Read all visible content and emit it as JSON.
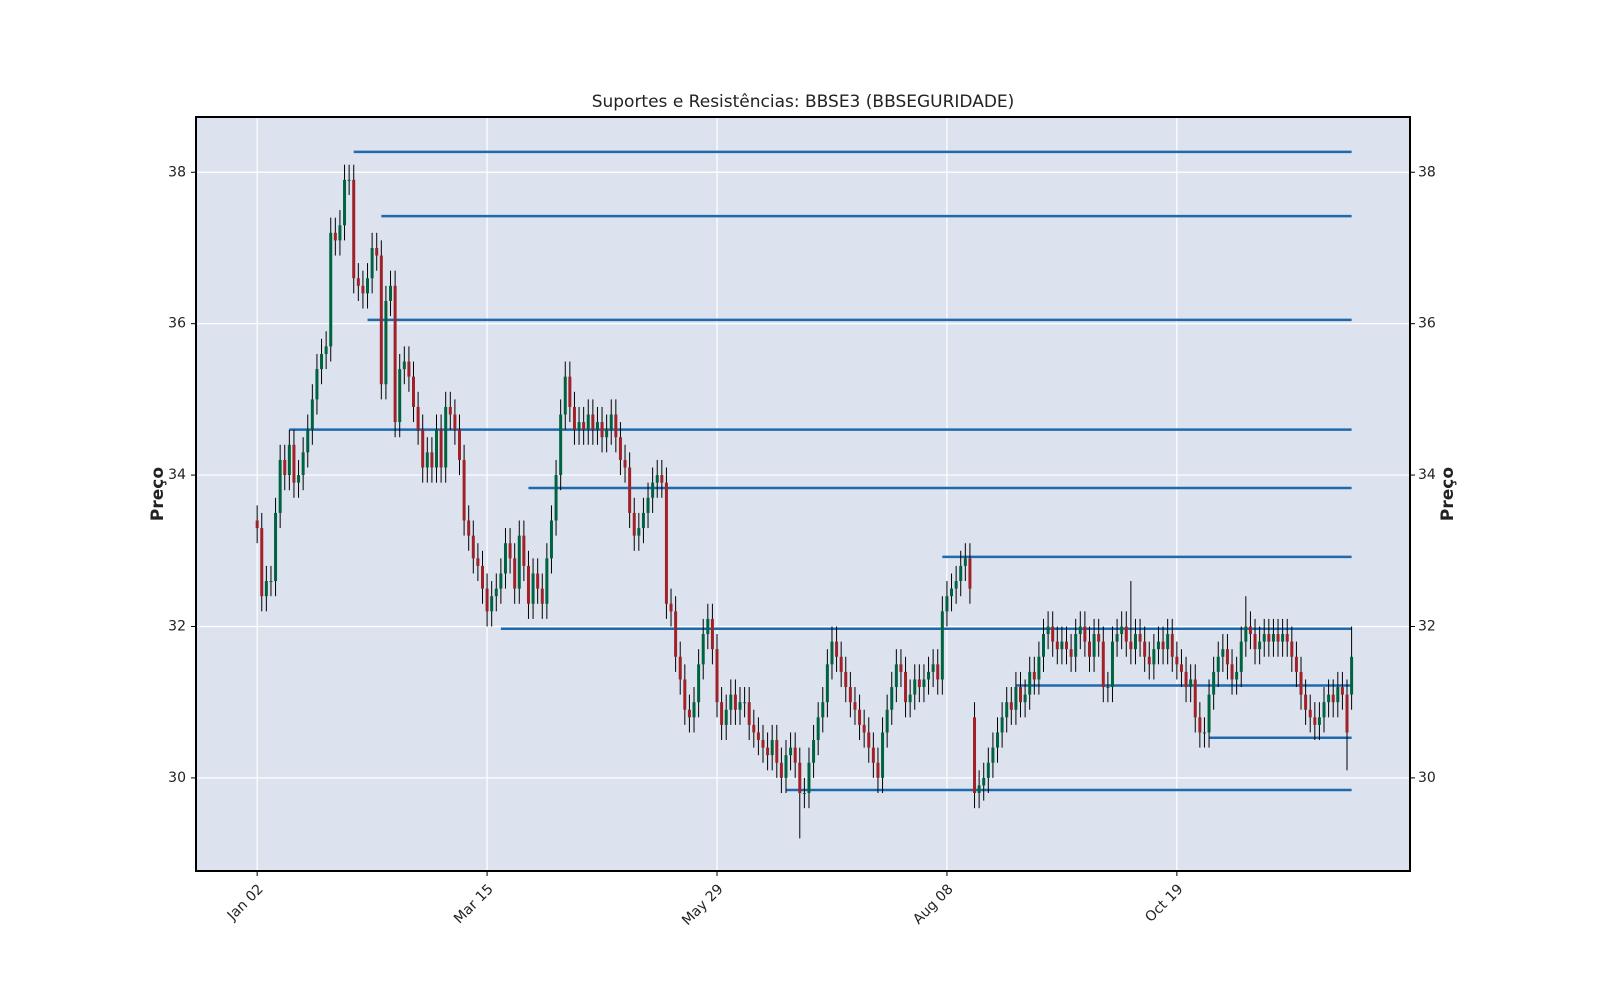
{
  "chart_data": {
    "type": "candlestick",
    "title": "Suportes e Resistências: BBSE3 (BBSEGURIDADE)",
    "ylabel": "Preço",
    "y2label": "Preço",
    "xlim": [
      -13.3,
      250.7
    ],
    "xticks": [
      {
        "value": 0,
        "label": "Jan 02"
      },
      {
        "value": 50,
        "label": "Mar 15"
      },
      {
        "value": 100,
        "label": "May 29"
      },
      {
        "value": 150,
        "label": "Aug 08"
      },
      {
        "value": 200,
        "label": "Oct 19"
      }
    ],
    "ylim": [
      28.77,
      38.73
    ],
    "yticks": [
      30,
      32,
      34,
      36,
      38
    ],
    "y2lim": [
      28.77,
      38.73
    ],
    "y2ticks": [
      30,
      32,
      34,
      36,
      38
    ],
    "grid": true,
    "up_color": "#006340",
    "down_color": "#a02128",
    "wick_color": "#000000",
    "level_color": "#1f6aad",
    "open": [
      33.4,
      33.3,
      32.4,
      32.6,
      32.6,
      33.5,
      34.2,
      34.0,
      34.4,
      33.9,
      34.0,
      34.3,
      34.6,
      35.0,
      35.4,
      35.6,
      35.7,
      37.2,
      37.1,
      37.3,
      37.9,
      37.9,
      36.6,
      36.5,
      36.4,
      36.6,
      37.0,
      36.9,
      35.2,
      36.3,
      36.5,
      34.7,
      35.4,
      35.5,
      35.3,
      34.9,
      34.6,
      34.1,
      34.3,
      34.1,
      34.6,
      34.1,
      34.9,
      34.8,
      34.6,
      34.2,
      33.4,
      33.2,
      32.9,
      32.8,
      32.5,
      32.2,
      32.4,
      32.5,
      32.7,
      33.1,
      32.9,
      32.5,
      33.2,
      32.8,
      32.3,
      32.7,
      32.5,
      32.3,
      32.9,
      33.4,
      34.0,
      34.8,
      35.3,
      34.9,
      34.6,
      34.7,
      34.6,
      34.8,
      34.6,
      34.7,
      34.5,
      34.6,
      34.8,
      34.5,
      34.2,
      34.1,
      33.5,
      33.2,
      33.3,
      33.5,
      33.7,
      33.9,
      34.0,
      33.9,
      32.3,
      32.2,
      31.6,
      31.3,
      30.9,
      30.8,
      31.0,
      31.5,
      31.9,
      32.1,
      31.7,
      31.0,
      30.7,
      30.9,
      31.1,
      30.9,
      31.0,
      31.0,
      30.7,
      30.6,
      30.5,
      30.4,
      30.3,
      30.5,
      30.2,
      30.0,
      30.3,
      30.4,
      30.2,
      29.8,
      29.8,
      30.2,
      30.5,
      30.8,
      31.0,
      31.5,
      31.8,
      31.6,
      31.4,
      31.2,
      31.0,
      30.9,
      30.7,
      30.6,
      30.4,
      30.2,
      30.0,
      30.6,
      30.9,
      31.2,
      31.5,
      31.4,
      31.0,
      31.1,
      31.3,
      31.2,
      31.3,
      31.4,
      31.5,
      31.3,
      32.2,
      32.4,
      32.5,
      32.6,
      32.8,
      32.9,
      30.8,
      29.8,
      29.9,
      30.0,
      30.2,
      30.4,
      30.6,
      30.8,
      31.0,
      30.9,
      31.2,
      31.0,
      31.1,
      31.4,
      31.3,
      31.6,
      31.9,
      32.0,
      31.8,
      31.7,
      31.8,
      31.7,
      31.6,
      31.9,
      32.0,
      31.8,
      31.6,
      31.9,
      31.8,
      31.2,
      31.2,
      31.8,
      31.9,
      32.0,
      31.8,
      31.7,
      31.9,
      31.8,
      31.6,
      31.5,
      31.7,
      31.8,
      31.7,
      31.9,
      31.6,
      31.5,
      31.4,
      31.2,
      31.3,
      30.8,
      30.6,
      30.6,
      31.1,
      31.4,
      31.6,
      31.7,
      31.5,
      31.3,
      31.4,
      31.8,
      32.0,
      31.9,
      31.7,
      31.8,
      31.9,
      31.8,
      31.9,
      31.8,
      31.9,
      31.8,
      31.6,
      31.4,
      31.1,
      30.9,
      30.8,
      30.7,
      30.8,
      31.0,
      31.1,
      31.0,
      31.2,
      31.1,
      31.1
    ],
    "high": [
      33.6,
      33.5,
      32.8,
      32.8,
      33.7,
      34.4,
      34.4,
      34.6,
      34.6,
      34.2,
      34.5,
      34.8,
      35.2,
      35.6,
      35.8,
      35.9,
      37.4,
      37.4,
      37.5,
      38.1,
      38.1,
      38.1,
      36.8,
      36.7,
      36.8,
      37.2,
      37.2,
      37.1,
      36.5,
      36.7,
      36.7,
      35.6,
      35.7,
      35.7,
      35.5,
      35.1,
      34.8,
      34.5,
      34.5,
      34.8,
      34.8,
      35.1,
      35.1,
      35.0,
      34.8,
      34.4,
      33.6,
      33.4,
      33.1,
      33.0,
      32.7,
      32.6,
      32.7,
      32.9,
      33.3,
      33.3,
      33.1,
      33.4,
      33.4,
      33.0,
      32.9,
      32.9,
      32.7,
      33.1,
      33.6,
      34.2,
      35.0,
      35.5,
      35.5,
      35.1,
      34.9,
      34.9,
      35.0,
      35.0,
      34.9,
      34.9,
      34.8,
      35.0,
      35.0,
      34.7,
      34.4,
      34.3,
      33.7,
      33.5,
      33.7,
      33.9,
      34.1,
      34.2,
      34.2,
      34.1,
      32.5,
      32.4,
      31.8,
      31.5,
      31.1,
      31.2,
      31.7,
      32.1,
      32.3,
      32.3,
      31.9,
      31.2,
      31.1,
      31.3,
      31.3,
      31.2,
      31.2,
      31.2,
      30.9,
      30.8,
      30.7,
      30.6,
      30.7,
      30.7,
      30.4,
      30.5,
      30.6,
      30.6,
      30.4,
      30.0,
      30.4,
      30.7,
      31.0,
      31.2,
      31.7,
      32.0,
      32.0,
      31.8,
      31.6,
      31.4,
      31.2,
      31.1,
      30.9,
      30.8,
      30.6,
      30.4,
      30.8,
      31.1,
      31.4,
      31.7,
      31.7,
      31.6,
      31.3,
      31.5,
      31.5,
      31.5,
      31.6,
      31.7,
      31.7,
      32.4,
      32.6,
      32.7,
      32.8,
      33.0,
      33.1,
      33.1,
      31.0,
      30.1,
      30.2,
      30.4,
      30.6,
      30.8,
      31.0,
      31.2,
      31.2,
      31.4,
      31.4,
      31.3,
      31.6,
      31.6,
      31.8,
      32.1,
      32.2,
      32.2,
      32.0,
      32.0,
      32.0,
      31.9,
      32.1,
      32.2,
      32.2,
      32.0,
      32.1,
      32.1,
      32.0,
      31.4,
      32.0,
      32.1,
      32.2,
      32.2,
      32.6,
      32.1,
      32.1,
      32.0,
      31.8,
      31.9,
      32.0,
      32.0,
      32.1,
      32.1,
      31.8,
      31.7,
      31.6,
      31.5,
      31.5,
      31.0,
      30.8,
      31.3,
      31.6,
      31.8,
      31.9,
      31.9,
      31.7,
      31.6,
      32.0,
      32.4,
      32.2,
      32.1,
      32.0,
      32.1,
      32.1,
      32.1,
      32.1,
      32.1,
      32.1,
      32.0,
      31.8,
      31.6,
      31.3,
      31.1,
      31.0,
      31.0,
      31.2,
      31.3,
      31.3,
      31.4,
      31.4,
      31.3,
      32.0
    ],
    "low": [
      33.1,
      32.2,
      32.2,
      32.4,
      32.4,
      33.3,
      33.8,
      33.8,
      33.7,
      33.7,
      33.8,
      34.1,
      34.4,
      34.8,
      35.2,
      35.4,
      35.5,
      36.9,
      36.9,
      37.1,
      37.7,
      36.4,
      36.3,
      36.2,
      36.2,
      36.4,
      36.7,
      35.0,
      35.0,
      36.1,
      34.5,
      34.5,
      35.2,
      35.1,
      34.7,
      34.4,
      33.9,
      33.9,
      33.9,
      33.9,
      33.9,
      33.9,
      34.6,
      34.4,
      34.0,
      33.2,
      33.0,
      32.7,
      32.6,
      32.3,
      32.0,
      32.0,
      32.2,
      32.3,
      32.5,
      32.7,
      32.3,
      32.3,
      32.6,
      32.1,
      32.1,
      32.3,
      32.1,
      32.1,
      32.7,
      33.2,
      33.8,
      34.6,
      34.7,
      34.4,
      34.4,
      34.4,
      34.4,
      34.4,
      34.4,
      34.3,
      34.3,
      34.4,
      34.3,
      34.0,
      33.9,
      33.3,
      33.0,
      33.0,
      33.1,
      33.3,
      33.5,
      33.7,
      33.7,
      32.1,
      32.0,
      31.4,
      31.1,
      30.7,
      30.6,
      30.6,
      30.8,
      31.3,
      31.7,
      31.5,
      30.8,
      30.5,
      30.5,
      30.7,
      30.7,
      30.7,
      30.8,
      30.5,
      30.4,
      30.3,
      30.2,
      30.1,
      30.1,
      30.0,
      29.8,
      29.8,
      30.1,
      30.0,
      29.2,
      29.6,
      29.6,
      30.0,
      30.3,
      30.6,
      30.8,
      31.3,
      31.4,
      31.2,
      31.0,
      30.8,
      30.7,
      30.5,
      30.4,
      30.2,
      30.0,
      29.8,
      29.8,
      30.4,
      30.7,
      31.0,
      31.2,
      30.8,
      30.8,
      30.9,
      31.0,
      31.0,
      31.1,
      31.2,
      31.1,
      31.1,
      32.0,
      32.2,
      32.3,
      32.4,
      32.6,
      32.3,
      29.6,
      29.6,
      29.7,
      29.8,
      30.0,
      30.2,
      30.4,
      30.6,
      30.7,
      30.7,
      30.8,
      30.8,
      30.9,
      31.1,
      31.1,
      31.4,
      31.7,
      31.6,
      31.5,
      31.5,
      31.5,
      31.4,
      31.4,
      31.7,
      31.6,
      31.4,
      31.4,
      31.6,
      31.0,
      31.0,
      31.0,
      31.6,
      31.7,
      31.6,
      31.5,
      31.5,
      31.6,
      31.4,
      31.3,
      31.3,
      31.5,
      31.5,
      31.5,
      31.4,
      31.3,
      31.2,
      31.0,
      31.0,
      30.6,
      30.4,
      30.4,
      30.4,
      30.9,
      31.2,
      31.4,
      31.3,
      31.1,
      31.1,
      31.2,
      31.6,
      31.7,
      31.5,
      31.5,
      31.6,
      31.6,
      31.6,
      31.6,
      31.6,
      31.6,
      31.4,
      31.2,
      30.9,
      30.7,
      30.6,
      30.5,
      30.5,
      30.6,
      30.8,
      30.8,
      30.8,
      30.9,
      30.1,
      30.9
    ],
    "close": [
      33.3,
      32.4,
      32.6,
      32.6,
      33.5,
      34.2,
      34.0,
      34.4,
      33.9,
      34.0,
      34.3,
      34.6,
      35.0,
      35.4,
      35.6,
      35.7,
      37.2,
      37.1,
      37.3,
      37.9,
      37.9,
      36.6,
      36.5,
      36.4,
      36.6,
      37.0,
      36.9,
      35.2,
      36.3,
      36.5,
      34.7,
      35.4,
      35.5,
      35.3,
      34.9,
      34.6,
      34.1,
      34.3,
      34.1,
      34.6,
      34.1,
      34.9,
      34.8,
      34.6,
      34.2,
      33.4,
      33.2,
      32.9,
      32.8,
      32.5,
      32.2,
      32.4,
      32.5,
      32.7,
      33.1,
      32.9,
      32.5,
      33.2,
      32.8,
      32.3,
      32.7,
      32.5,
      32.3,
      32.9,
      33.4,
      34.0,
      34.8,
      35.3,
      34.9,
      34.6,
      34.7,
      34.6,
      34.8,
      34.6,
      34.7,
      34.5,
      34.6,
      34.8,
      34.5,
      34.2,
      34.1,
      33.5,
      33.2,
      33.3,
      33.5,
      33.7,
      33.9,
      34.0,
      33.9,
      32.3,
      32.2,
      31.6,
      31.3,
      30.9,
      30.8,
      31.0,
      31.5,
      31.9,
      32.1,
      31.7,
      31.0,
      30.7,
      30.9,
      31.1,
      30.9,
      31.0,
      31.0,
      30.7,
      30.6,
      30.5,
      30.4,
      30.3,
      30.5,
      30.2,
      30.0,
      30.3,
      30.4,
      30.2,
      29.8,
      29.8,
      30.2,
      30.5,
      30.8,
      31.0,
      31.5,
      31.8,
      31.6,
      31.4,
      31.2,
      31.0,
      30.9,
      30.7,
      30.6,
      30.4,
      30.2,
      30.0,
      30.6,
      30.9,
      31.2,
      31.5,
      31.4,
      31.0,
      31.1,
      31.3,
      31.2,
      31.3,
      31.4,
      31.5,
      31.3,
      32.2,
      32.4,
      32.5,
      32.6,
      32.8,
      32.9,
      32.5,
      29.8,
      29.9,
      30.0,
      30.2,
      30.4,
      30.6,
      30.8,
      31.0,
      30.9,
      31.2,
      31.0,
      31.1,
      31.4,
      31.3,
      31.6,
      31.9,
      32.0,
      31.8,
      31.7,
      31.8,
      31.7,
      31.6,
      31.9,
      32.0,
      31.8,
      31.6,
      31.9,
      31.8,
      31.2,
      31.2,
      31.8,
      31.9,
      32.0,
      31.8,
      31.7,
      31.9,
      31.8,
      31.6,
      31.5,
      31.7,
      31.8,
      31.7,
      31.9,
      31.6,
      31.5,
      31.4,
      31.2,
      31.3,
      30.8,
      30.6,
      30.6,
      31.1,
      31.4,
      31.6,
      31.7,
      31.5,
      31.3,
      31.4,
      31.8,
      32.0,
      31.9,
      31.7,
      31.8,
      31.9,
      31.8,
      31.9,
      31.8,
      31.9,
      31.8,
      31.6,
      31.4,
      31.1,
      30.9,
      30.8,
      30.7,
      30.8,
      31.0,
      31.1,
      31.0,
      31.2,
      31.1,
      30.6,
      31.6
    ],
    "levels": [
      {
        "value": 38.27,
        "start": 21
      },
      {
        "value": 37.42,
        "start": 27
      },
      {
        "value": 36.05,
        "start": 24
      },
      {
        "value": 34.6,
        "start": 7
      },
      {
        "value": 33.83,
        "start": 59
      },
      {
        "value": 32.92,
        "start": 149
      },
      {
        "value": 31.97,
        "start": 53
      },
      {
        "value": 31.22,
        "start": 165
      },
      {
        "value": 30.53,
        "start": 207
      },
      {
        "value": 29.84,
        "start": 115
      }
    ]
  }
}
